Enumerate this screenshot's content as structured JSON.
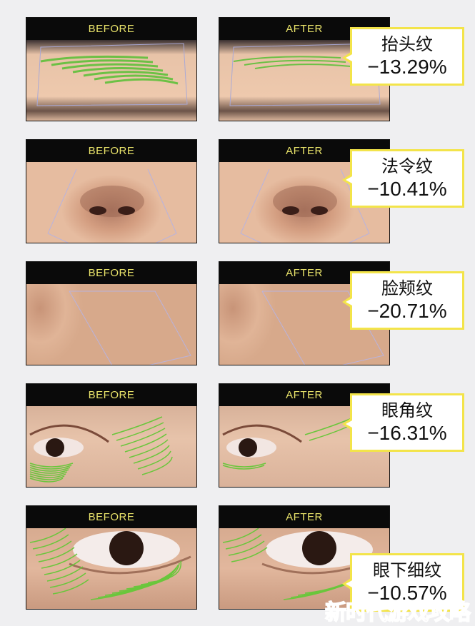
{
  "labels": {
    "before": "BEFORE",
    "after": "AFTER"
  },
  "rows": [
    {
      "area": "forehead",
      "name": "抬头纹",
      "change": "−13.29%"
    },
    {
      "area": "nasolabial",
      "name": "法令纹",
      "change": "−10.41%"
    },
    {
      "area": "cheek",
      "name": "脸颊纹",
      "change": "−20.71%"
    },
    {
      "area": "eye-corner",
      "name": "眼角纹",
      "change": "−16.31%"
    },
    {
      "area": "under-eye",
      "name": "眼下细纹",
      "change": "−10.57%"
    }
  ],
  "colors": {
    "header_text": "#e9e36a",
    "callout_border": "#f3e44a",
    "wrinkle_marks": "#5cc23a"
  },
  "watermark": "新时代游戏攻略"
}
